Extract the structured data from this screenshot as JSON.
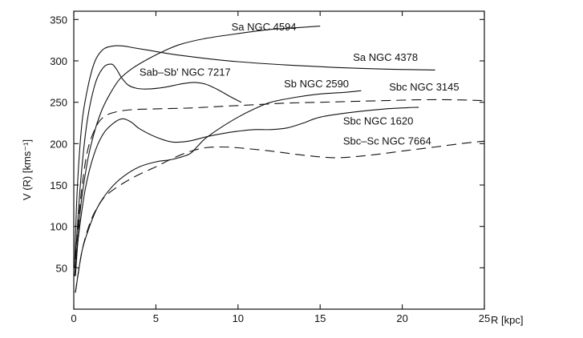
{
  "chart_data": {
    "type": "line",
    "xlabel": "R [kpc]",
    "ylabel": "V (R) [kms⁻¹]",
    "xlim": [
      0,
      25
    ],
    "ylim": [
      0,
      360
    ],
    "xticks": [
      0,
      5,
      10,
      15,
      20,
      25
    ],
    "yticks": [
      50,
      100,
      150,
      200,
      250,
      300,
      350
    ],
    "grid": false,
    "legend": "none",
    "series": [
      {
        "name": "Sa NGC 4594",
        "dash": "solid",
        "x": [
          0.1,
          0.4,
          0.8,
          1.2,
          1.7,
          2.2,
          2.8,
          3.5,
          4.5,
          5.5,
          6.5,
          8,
          10,
          12,
          13.5,
          15
        ],
        "y": [
          40,
          120,
          175,
          210,
          240,
          260,
          278,
          290,
          302,
          312,
          320,
          327,
          333,
          338,
          340,
          342
        ]
      },
      {
        "name": "Sa NGC 4378",
        "dash": "solid",
        "x": [
          0.05,
          0.2,
          0.5,
          0.9,
          1.3,
          1.8,
          2.4,
          3.0,
          3.6,
          4.5,
          6,
          8,
          10,
          13,
          16,
          19,
          22
        ],
        "y": [
          50,
          140,
          225,
          272,
          300,
          314,
          318,
          318,
          316,
          313,
          308,
          303,
          299,
          295,
          292,
          290,
          289
        ]
      },
      {
        "name": "Sab–Sb' NGC 7217",
        "dash": "solid",
        "x": [
          0.1,
          0.4,
          0.8,
          1.3,
          1.8,
          2.3,
          2.6,
          2.9,
          3.3,
          3.8,
          4.5,
          5.5,
          6.5,
          7.3,
          8,
          8.8,
          9.5,
          10.2
        ],
        "y": [
          60,
          150,
          225,
          272,
          292,
          296,
          290,
          280,
          271,
          267,
          266,
          268,
          272,
          274,
          272,
          265,
          257,
          250
        ]
      },
      {
        "name": "Sb NGC 2590",
        "dash": "solid",
        "x": [
          0.1,
          0.5,
          1,
          1.5,
          2.2,
          3,
          4,
          5,
          6,
          7,
          7.5,
          8,
          9,
          10,
          11,
          12,
          13.5,
          15,
          16.5,
          17.5
        ],
        "y": [
          20,
          70,
          102,
          125,
          145,
          160,
          172,
          178,
          181,
          187,
          196,
          206,
          220,
          232,
          242,
          250,
          256,
          260,
          262,
          264
        ]
      },
      {
        "name": "Sbc NGC 3145",
        "dash": "dashed",
        "x": [
          0.1,
          0.4,
          0.8,
          1.3,
          1.8,
          2.5,
          3.5,
          5,
          7,
          9,
          11,
          13,
          15,
          17,
          19,
          21,
          23,
          25
        ],
        "y": [
          60,
          130,
          188,
          218,
          232,
          238,
          241,
          242,
          243,
          245,
          247,
          249,
          250,
          251,
          252,
          253,
          253,
          252
        ]
      },
      {
        "name": "Sbc NGC 1620",
        "dash": "solid",
        "x": [
          0.05,
          0.3,
          0.7,
          1.2,
          1.8,
          2.5,
          3.0,
          3.5,
          4,
          5,
          6,
          7,
          8,
          9,
          10,
          11,
          12,
          13,
          14,
          15,
          17,
          19,
          21
        ],
        "y": [
          40,
          90,
          145,
          185,
          212,
          226,
          230,
          226,
          218,
          208,
          202,
          203,
          208,
          212,
          215,
          217,
          217,
          219,
          225,
          232,
          238,
          242,
          244
        ]
      },
      {
        "name": "Sbc–Sc NGC 7664",
        "dash": "dashed",
        "x": [
          0.1,
          0.5,
          1,
          1.5,
          2,
          3,
          4,
          5,
          6,
          7,
          8,
          9,
          10,
          12,
          14,
          16,
          18,
          20,
          22,
          24,
          25
        ],
        "y": [
          20,
          70,
          105,
          125,
          138,
          152,
          163,
          172,
          182,
          190,
          195,
          196,
          195,
          191,
          186,
          183,
          186,
          191,
          196,
          201,
          203
        ]
      }
    ],
    "annotations": [
      {
        "text": "Sa NGC 4594",
        "x": 9.6,
        "y": 337
      },
      {
        "text": "Sa NGC 4378",
        "x": 17.0,
        "y": 300
      },
      {
        "text": "Sab–Sb' NGC 7217",
        "x": 4.0,
        "y": 282
      },
      {
        "text": "Sb NGC 2590",
        "x": 12.8,
        "y": 268
      },
      {
        "text": "Sbc NGC 3145",
        "x": 19.2,
        "y": 264
      },
      {
        "text": "Sbc NGC 1620",
        "x": 16.4,
        "y": 223
      },
      {
        "text": "Sbc–Sc NGC 7664",
        "x": 16.4,
        "y": 199
      }
    ]
  }
}
